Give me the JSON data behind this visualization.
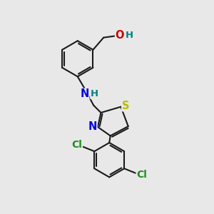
{
  "background_color": "#e8e8e8",
  "bond_color": "#1a1a1a",
  "bond_width": 1.5,
  "atom_colors": {
    "O": "#cc0000",
    "H": "#008080",
    "N": "#0000dd",
    "S": "#bbbb00",
    "Cl": "#228B22",
    "C": "#1a1a1a"
  },
  "font_size": 10.5
}
